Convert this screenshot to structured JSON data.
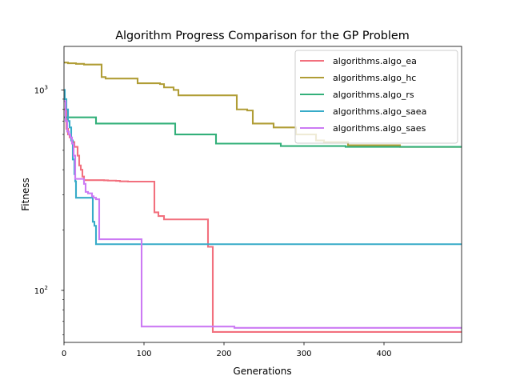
{
  "chart_data": {
    "type": "line",
    "title": "Algorithm Progress Comparison for the GP Problem",
    "xlabel": "Generations",
    "ylabel": "Fitness",
    "yscale": "log",
    "xlim": [
      0,
      497
    ],
    "ylim": [
      55,
      1650
    ],
    "x_ticks": [
      {
        "value": 0,
        "label": "0"
      },
      {
        "value": 100,
        "label": "100"
      },
      {
        "value": 200,
        "label": "200"
      },
      {
        "value": 300,
        "label": "300"
      },
      {
        "value": 400,
        "label": "400"
      }
    ],
    "y_ticks": [
      {
        "value": 100,
        "label": "10",
        "sup": "2"
      },
      {
        "value": 1000,
        "label": "10",
        "sup": "3"
      }
    ],
    "legend_position": "top-right",
    "grid": false,
    "series": [
      {
        "name": "algorithms.algo_ea",
        "color": "#f2707e",
        "x": [
          0,
          3,
          5,
          7,
          9,
          11,
          13,
          17,
          19,
          21,
          23,
          25,
          45,
          50,
          55,
          60,
          65,
          70,
          80,
          109,
          113,
          118,
          125,
          176,
          180,
          186,
          186,
          497
        ],
        "y": [
          800,
          640,
          600,
          580,
          560,
          550,
          520,
          470,
          420,
          400,
          370,
          355,
          355,
          354,
          353,
          353,
          352,
          350,
          349,
          349,
          245,
          235,
          226,
          226,
          165,
          165,
          62,
          62
        ]
      },
      {
        "name": "algorithms.algo_hc",
        "color": "#b09d36",
        "x": [
          0,
          5,
          10,
          15,
          25,
          42,
          47,
          52,
          62,
          88,
          92,
          120,
          125,
          132,
          137,
          143,
          158,
          185,
          212,
          216,
          229,
          236,
          262,
          290,
          315,
          325,
          355,
          385,
          420,
          497
        ],
        "y": [
          1370,
          1360,
          1360,
          1350,
          1340,
          1340,
          1160,
          1140,
          1140,
          1140,
          1080,
          1070,
          1030,
          1030,
          1000,
          940,
          940,
          940,
          940,
          800,
          790,
          680,
          650,
          600,
          560,
          550,
          530,
          530,
          520,
          520
        ]
      },
      {
        "name": "algorithms.algo_rs",
        "color": "#33b07a",
        "x": [
          0,
          8,
          38,
          40,
          100,
          136,
          139,
          150,
          168,
          188,
          190,
          230,
          268,
          271,
          310,
          350,
          352,
          420,
          497
        ],
        "y": [
          730,
          730,
          730,
          680,
          680,
          680,
          600,
          600,
          600,
          600,
          540,
          540,
          540,
          525,
          525,
          525,
          520,
          520,
          520
        ]
      },
      {
        "name": "algorithms.algo_saea",
        "color": "#37abc8",
        "x": [
          0,
          1,
          3,
          5,
          7,
          9,
          11,
          13,
          14,
          15,
          18,
          30,
          35,
          36,
          38,
          40,
          42,
          60,
          100,
          200,
          300,
          497
        ],
        "y": [
          1000,
          900,
          800,
          700,
          650,
          560,
          450,
          380,
          350,
          290,
          290,
          290,
          290,
          220,
          210,
          170,
          170,
          170,
          170,
          170,
          170,
          170
        ]
      },
      {
        "name": "algorithms.algo_saes",
        "color": "#cc7af4",
        "x": [
          0,
          2,
          4,
          6,
          8,
          10,
          12,
          14,
          18,
          25,
          27,
          30,
          35,
          37,
          40,
          43,
          44,
          46,
          60,
          96,
          97,
          120,
          150,
          211,
          213,
          497
        ],
        "y": [
          880,
          700,
          620,
          600,
          580,
          540,
          470,
          360,
          360,
          340,
          310,
          305,
          295,
          290,
          285,
          285,
          180,
          180,
          180,
          180,
          66,
          66,
          66,
          66,
          65,
          65
        ]
      }
    ]
  }
}
